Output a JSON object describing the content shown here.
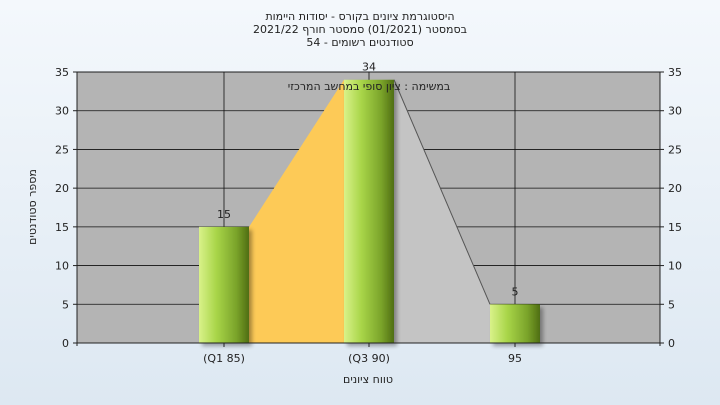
{
  "title": {
    "line1": "היסטוגרמת ציונים בקורס - יסודות היימות",
    "line2": "בסמסטר  (01/2021)  סמסטר חורף 2021/22",
    "line3": "סטודנטים רשומים - 54"
  },
  "chart_data": {
    "type": "bar",
    "categories": [
      "(Q1 85)",
      "(Q3 90)",
      "95"
    ],
    "values": [
      15,
      34,
      5
    ],
    "data_labels": [
      "15",
      "34",
      "5"
    ],
    "ylim": [
      0,
      35
    ],
    "yticks": [
      0,
      5,
      10,
      15,
      20,
      25,
      30,
      35
    ],
    "ylabel": "מספר סטודנטים",
    "xlabel": "טווח ציונים",
    "annotation": "במשימה : ציון סופי במחשב המרכזי",
    "grid": true,
    "right_axis": true,
    "colors": {
      "plot_bg": "#b4b4b4",
      "bar_light": "#d9f28a",
      "bar_mid": "#9fcf3c",
      "bar_dark": "#4f6e12",
      "q1_area": "#fdca57",
      "q3_area": "#c4c4c4"
    }
  }
}
